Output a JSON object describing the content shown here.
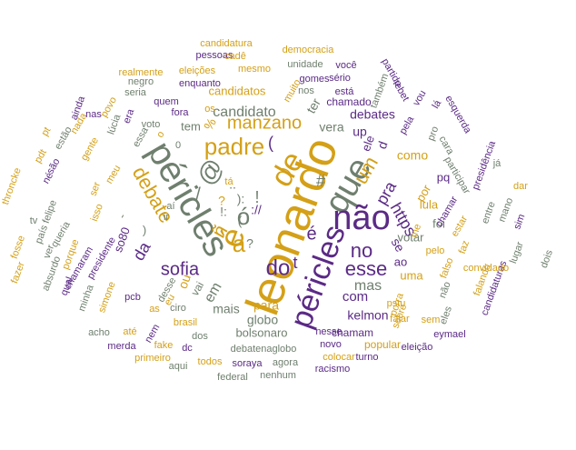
{
  "colors": {
    "purple": "#5b2a86",
    "gold": "#d4a017",
    "gray": "#6f7f6e"
  },
  "words": [
    {
      "text": "leonardo",
      "color": "gold"
    },
    {
      "text": "péricles",
      "color": "gray"
    },
    {
      "text": "péricles",
      "color": "purple"
    },
    {
      "text": "que",
      "color": "gray"
    },
    {
      "text": "não",
      "color": "purple"
    },
    {
      "text": "de",
      "color": "gold"
    },
    {
      "text": "padre",
      "color": "gold"
    },
    {
      "text": "debate",
      "color": "gold"
    },
    {
      "text": "é",
      "color": "gold"
    },
    {
      "text": "@",
      "color": "gray"
    },
    {
      "text": "ó",
      "color": "gray"
    },
    {
      "text": "manzano",
      "color": "gold"
    },
    {
      "text": "a",
      "color": "gold"
    },
    {
      "text": "do",
      "color": "purple"
    },
    {
      "text": "no",
      "color": "purple"
    },
    {
      "text": "um",
      "color": "gold"
    },
    {
      "text": "sofia",
      "color": "purple"
    },
    {
      "text": "esse",
      "color": "purple"
    },
    {
      "text": "mas",
      "color": "gray"
    },
    {
      "text": "https",
      "color": "purple"
    },
    {
      "text": "candidato",
      "color": "gray"
    },
    {
      "text": "da",
      "color": "purple"
    },
    {
      "text": "pra",
      "color": "purple"
    },
    {
      "text": "com",
      "color": "purple"
    },
    {
      "text": "para",
      "color": "gold"
    },
    {
      "text": "vera",
      "color": "gray"
    },
    {
      "text": "se",
      "color": "purple"
    },
    {
      "text": "#",
      "color": "gray"
    },
    {
      "text": "t",
      "color": "purple"
    },
    {
      "text": "é",
      "color": "purple"
    },
    {
      "text": "kelmon",
      "color": "purple"
    },
    {
      "text": "globo",
      "color": "gray"
    },
    {
      "text": "mais",
      "color": "gray"
    },
    {
      "text": "debates",
      "color": "purple"
    },
    {
      "text": "como",
      "color": "gold"
    },
    {
      "text": "candidatos",
      "color": "gold"
    },
    {
      "text": "lula",
      "color": "gold"
    },
    {
      "text": "votar",
      "color": "gray"
    },
    {
      "text": "bolsonaro",
      "color": "gray"
    },
    {
      "text": "so80",
      "color": "purple"
    },
    {
      "text": "tem",
      "color": "gray"
    },
    {
      "text": "foi",
      "color": "gray"
    },
    {
      "text": "por",
      "color": "gold"
    },
    {
      "text": "pq",
      "color": "purple"
    },
    {
      "text": "uma",
      "color": "gold"
    },
    {
      "text": "ao",
      "color": "purple"
    },
    {
      "text": "up",
      "color": "purple"
    },
    {
      "text": "ele",
      "color": "purple"
    },
    {
      "text": "sem",
      "color": "gold"
    },
    {
      "text": "popular",
      "color": "gold"
    },
    {
      "text": "chamado",
      "color": "purple"
    },
    {
      "text": "chamam",
      "color": "purple"
    },
    {
      "text": "novo",
      "color": "purple"
    },
    {
      "text": "nesse",
      "color": "purple"
    },
    {
      "text": "falar",
      "color": "gold"
    },
    {
      "text": "pstu",
      "color": "gold"
    },
    {
      "text": "eleição",
      "color": "purple"
    },
    {
      "text": "turno",
      "color": "purple"
    },
    {
      "text": "colocar",
      "color": "gold"
    },
    {
      "text": "racismo",
      "color": "purple"
    },
    {
      "text": "nenhum",
      "color": "gray"
    },
    {
      "text": "federal",
      "color": "gray"
    },
    {
      "text": "soraya",
      "color": "purple"
    },
    {
      "text": "agora",
      "color": "gray"
    },
    {
      "text": "todos",
      "color": "gold"
    },
    {
      "text": "aqui",
      "color": "gray"
    },
    {
      "text": "dc",
      "color": "purple"
    },
    {
      "text": "debatenaglobo",
      "color": "gray"
    },
    {
      "text": "fake",
      "color": "gold"
    },
    {
      "text": "dos",
      "color": "gray"
    },
    {
      "text": "brasil",
      "color": "gold"
    },
    {
      "text": "as",
      "color": "gold"
    },
    {
      "text": "ciro",
      "color": "gray"
    },
    {
      "text": "pcb",
      "color": "purple"
    },
    {
      "text": "até",
      "color": "gold"
    },
    {
      "text": "merda",
      "color": "purple"
    },
    {
      "text": "primeiro",
      "color": "gold"
    },
    {
      "text": "acho",
      "color": "gray"
    },
    {
      "text": "simone",
      "color": "gold"
    },
    {
      "text": "minha",
      "color": "gray"
    },
    {
      "text": "presidente",
      "color": "purple"
    },
    {
      "text": "chamaram",
      "color": "purple"
    },
    {
      "text": "porque",
      "color": "gold"
    },
    {
      "text": "queria",
      "color": "gray"
    },
    {
      "text": "isso",
      "color": "gold"
    },
    {
      "text": "ser",
      "color": "gold"
    },
    {
      "text": "meu",
      "color": "gold"
    },
    {
      "text": "gente",
      "color": "gold"
    },
    {
      "text": "nada",
      "color": "gold"
    },
    {
      "text": "povo",
      "color": "gold"
    },
    {
      "text": "lúcia",
      "color": "gray"
    },
    {
      "text": "era",
      "color": "purple"
    },
    {
      "text": "nas",
      "color": "purple"
    },
    {
      "text": "ainda",
      "color": "purple"
    },
    {
      "text": "estão",
      "color": "gray"
    },
    {
      "text": "são",
      "color": "purple"
    },
    {
      "text": "né",
      "color": "purple"
    },
    {
      "text": "pt",
      "color": "gold"
    },
    {
      "text": "throncke",
      "color": "gold"
    },
    {
      "text": "felipe",
      "color": "gray"
    },
    {
      "text": "tv",
      "color": "gray"
    },
    {
      "text": "país",
      "color": "gray"
    },
    {
      "text": "ver",
      "color": "gray"
    },
    {
      "text": "absurdo",
      "color": "gray"
    },
    {
      "text": "qual",
      "color": "purple"
    },
    {
      "text": "fosse",
      "color": "gold"
    },
    {
      "text": "fazer",
      "color": "gold"
    },
    {
      "text": "pdt",
      "color": "gold"
    },
    {
      "text": "voto",
      "color": "gray"
    },
    {
      "text": "quem",
      "color": "purple"
    },
    {
      "text": "fora",
      "color": "purple"
    },
    {
      "text": "seria",
      "color": "gray"
    },
    {
      "text": "negro",
      "color": "gray"
    },
    {
      "text": "realmente",
      "color": "gold"
    },
    {
      "text": "eleições",
      "color": "gold"
    },
    {
      "text": "enquanto",
      "color": "purple"
    },
    {
      "text": "pessoas",
      "color": "purple"
    },
    {
      "text": "candidatura",
      "color": "gold"
    },
    {
      "text": "cadê",
      "color": "gold"
    },
    {
      "text": "democracia",
      "color": "gold"
    },
    {
      "text": "mesmo",
      "color": "gold"
    },
    {
      "text": "unidade",
      "color": "gray"
    },
    {
      "text": "você",
      "color": "purple"
    },
    {
      "text": "sério",
      "color": "purple"
    },
    {
      "text": "gomes",
      "color": "purple"
    },
    {
      "text": "nos",
      "color": "gray"
    },
    {
      "text": "está",
      "color": "purple"
    },
    {
      "text": "muito",
      "color": "gold"
    },
    {
      "text": "também",
      "color": "gray"
    },
    {
      "text": "partido",
      "color": "purple"
    },
    {
      "text": "tebet",
      "color": "purple"
    },
    {
      "text": "vou",
      "color": "purple"
    },
    {
      "text": "lá",
      "color": "purple"
    },
    {
      "text": "pela",
      "color": "purple"
    },
    {
      "text": "pro",
      "color": "gray"
    },
    {
      "text": "cara",
      "color": "gray"
    },
    {
      "text": "esquerda",
      "color": "purple"
    },
    {
      "text": "participar",
      "color": "gray"
    },
    {
      "text": "presidência",
      "color": "purple"
    },
    {
      "text": "já",
      "color": "gray"
    },
    {
      "text": "dar",
      "color": "gold"
    },
    {
      "text": "sim",
      "color": "purple"
    },
    {
      "text": "mano",
      "color": "gray"
    },
    {
      "text": "entre",
      "color": "gray"
    },
    {
      "text": "dois",
      "color": "gray"
    },
    {
      "text": "lugar",
      "color": "gray"
    },
    {
      "text": "candidaturas",
      "color": "purple"
    },
    {
      "text": "convidado",
      "color": "gold"
    },
    {
      "text": "falando",
      "color": "gold"
    },
    {
      "text": "faz",
      "color": "gold"
    },
    {
      "text": "eles",
      "color": "gray"
    },
    {
      "text": "não",
      "color": "gray"
    },
    {
      "text": "falso",
      "color": "gold"
    },
    {
      "text": "pelo",
      "color": "gold"
    },
    {
      "text": "estar",
      "color": "gold"
    },
    {
      "text": "eymael",
      "color": "purple"
    },
    {
      "text": "chamar",
      "color": "purple"
    },
    {
      "text": "porra",
      "color": "gold"
    },
    {
      "text": "sobre",
      "color": "gold"
    },
    {
      "text": "me",
      "color": "gold"
    },
    {
      "text": "d",
      "color": "purple"
    },
    {
      "text": "ter",
      "color": "gray"
    },
    {
      "text": "%",
      "color": "gold"
    },
    {
      "text": "os",
      "color": "gold"
    },
    {
      "text": "ou",
      "color": "gold"
    },
    {
      "text": "vai",
      "color": "gray"
    },
    {
      "text": "em",
      "color": "gray"
    },
    {
      "text": "eu",
      "color": "gold"
    },
    {
      "text": "o",
      "color": "gold"
    },
    {
      "text": "essa",
      "color": "gray"
    },
    {
      "text": "nem",
      "color": "purple"
    },
    {
      "text": "desse",
      "color": "gray"
    },
    {
      "text": "tá",
      "color": "gold"
    },
    {
      "text": "aí",
      "color": "gray"
    },
    {
      "text": "ir",
      "color": "gray"
    },
    {
      "text": "0",
      "color": "gray"
    },
    {
      "text": "ñ",
      "color": "gold"
    },
    {
      "text": "(",
      "color": "purple"
    },
    {
      "text": ")",
      "color": "gold"
    },
    {
      "text": "/",
      "color": "gray"
    },
    {
      "text": "!",
      "color": "gray"
    },
    {
      "text": "?",
      "color": "gold"
    },
    {
      "text": "-",
      "color": "gray"
    },
    {
      "text": "://",
      "color": "purple"
    },
    {
      "text": "):",
      "color": "gray"
    },
    {
      "text": "!:",
      "color": "gray"
    },
    {
      "text": "..",
      "color": "gray"
    },
    {
      "text": "(",
      "color": "gray"
    },
    {
      "text": ")",
      "color": "gray"
    },
    {
      "text": "?",
      "color": "gray"
    },
    {
      "text": "),",
      "color": "gray"
    },
    {
      "text": "”",
      "color": "gray"
    }
  ]
}
